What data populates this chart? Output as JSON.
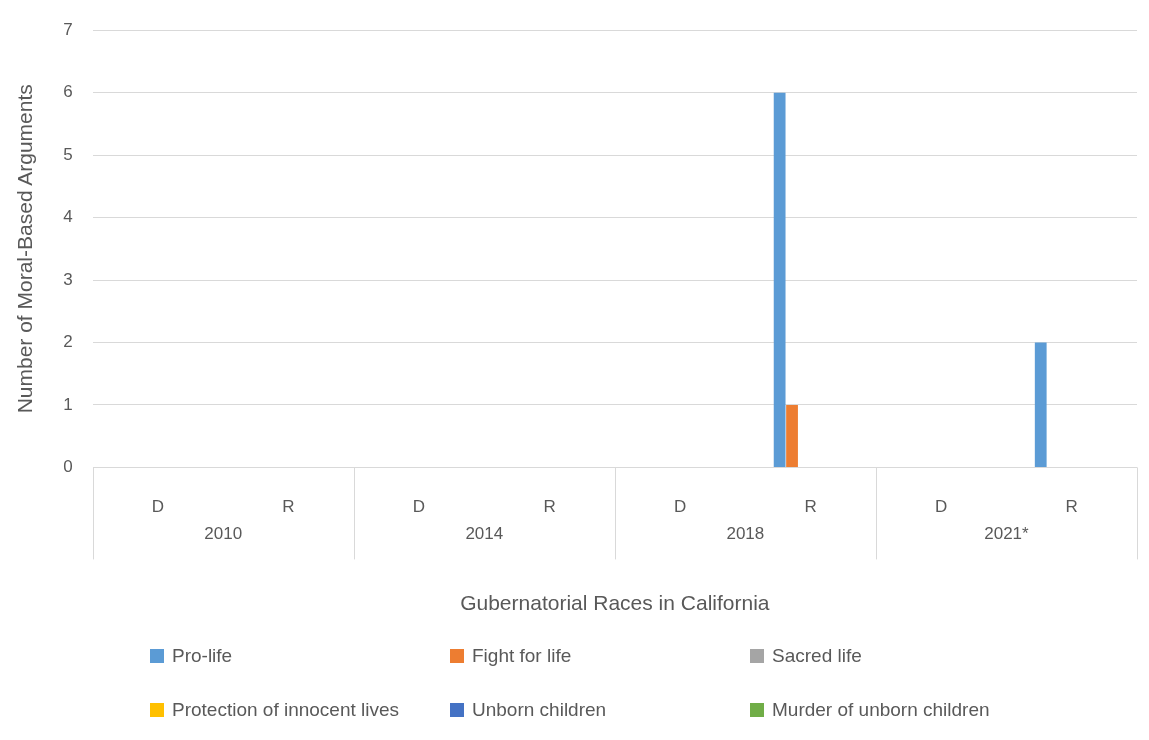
{
  "chart_data": {
    "type": "bar",
    "xlabel": "Gubernatorial Races in California",
    "ylabel": "Number of Moral-Based Arguments",
    "categories": [
      "D",
      "R",
      "D",
      "R",
      "D",
      "R",
      "D",
      "R"
    ],
    "annotations": [
      "2010",
      "2014",
      "2018",
      "2021*"
    ],
    "series": [
      {
        "name": "Pro-life",
        "color": "#5b9bd5",
        "values": [
          0,
          0,
          0,
          0,
          0,
          6,
          0,
          2
        ]
      },
      {
        "name": "Fight for life",
        "color": "#ed7d31",
        "values": [
          0,
          0,
          0,
          0,
          0,
          1,
          0,
          0
        ]
      },
      {
        "name": "Sacred life",
        "color": "#a5a5a5",
        "values": [
          0,
          0,
          0,
          0,
          0,
          0,
          0,
          0
        ]
      },
      {
        "name": "Protection of innocent lives",
        "color": "#ffc000",
        "values": [
          0,
          0,
          0,
          0,
          0,
          0,
          0,
          0
        ]
      },
      {
        "name": "Unborn children",
        "color": "#4472c4",
        "values": [
          0,
          0,
          0,
          0,
          0,
          0,
          0,
          0
        ]
      },
      {
        "name": "Murder of unborn children",
        "color": "#70ad47",
        "values": [
          0,
          0,
          0,
          0,
          0,
          0,
          0,
          0
        ]
      }
    ],
    "ylim": [
      0,
      7
    ],
    "yticks": [
      0,
      1,
      2,
      3,
      4,
      5,
      6,
      7
    ],
    "grid": "y",
    "legend": "bottom"
  }
}
